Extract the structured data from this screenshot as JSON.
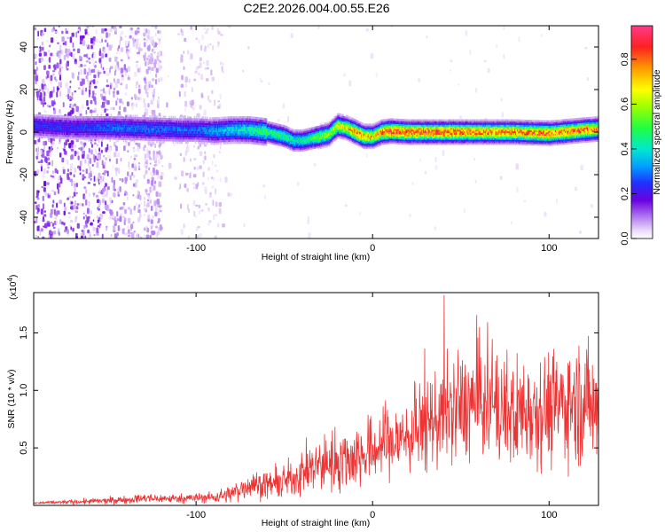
{
  "chart_data": [
    {
      "type": "heatmap",
      "title": "C2E2.2026.004.00.55.E26",
      "xlabel": "Height of straight line (km)",
      "ylabel": "Frequency (Hz)",
      "xlim": [
        -192,
        128
      ],
      "ylim": [
        -50,
        50
      ],
      "xticks": [
        -100,
        0,
        100
      ],
      "yticks": [
        -40,
        -20,
        0,
        20,
        40
      ],
      "colorbar": {
        "label": "Normalized spectral amplitude",
        "range": [
          0,
          0.95
        ],
        "ticks": [
          0.0,
          0.2,
          0.4,
          0.6,
          0.8
        ]
      },
      "ridge": {
        "x": [
          -192,
          -170,
          -150,
          -130,
          -110,
          -100,
          -90,
          -80,
          -70,
          -60,
          -50,
          -45,
          -40,
          -35,
          -30,
          -25,
          -20,
          -15,
          -10,
          -5,
          0,
          5,
          10,
          20,
          40,
          60,
          80,
          100,
          120,
          128
        ],
        "freq": [
          3,
          2,
          2,
          1.5,
          1,
          1,
          0.5,
          1,
          1,
          0,
          -2,
          -4,
          -4,
          -3,
          -2,
          -1,
          3,
          2,
          0,
          -2,
          -2,
          0,
          0.5,
          0,
          0,
          0,
          0,
          -0.5,
          1,
          1.5
        ],
        "amplitude": [
          0.25,
          0.25,
          0.3,
          0.3,
          0.3,
          0.3,
          0.35,
          0.4,
          0.45,
          0.5,
          0.5,
          0.45,
          0.45,
          0.5,
          0.6,
          0.6,
          0.7,
          0.7,
          0.85,
          0.8,
          0.75,
          0.85,
          0.9,
          0.9,
          0.9,
          0.85,
          0.85,
          0.85,
          0.85,
          0.8
        ]
      }
    },
    {
      "type": "line",
      "title": "",
      "xlabel": "Height of straight line (km)",
      "ylabel": "SNR (10 * v/v)",
      "y_scale_label": "(x10",
      "y_scale_exponent": "4",
      "y_scale_suffix": ")",
      "xlim": [
        -192,
        128
      ],
      "ylim": [
        0,
        1.85
      ],
      "xticks": [
        -100,
        0,
        100
      ],
      "yticks": [
        0.5,
        1.0,
        1.5
      ],
      "ytick_labels": [
        "0.5",
        "1.0",
        "1.5"
      ],
      "series": [
        {
          "name": "SNR",
          "color": "#ee3333",
          "envelope_x": [
            -192,
            -170,
            -150,
            -130,
            -110,
            -90,
            -80,
            -70,
            -60,
            -50,
            -40,
            -30,
            -20,
            -10,
            0,
            10,
            20,
            30,
            40,
            50,
            60,
            70,
            80,
            90,
            100,
            110,
            120,
            128
          ],
          "envelope_mean": [
            0.02,
            0.03,
            0.04,
            0.06,
            0.06,
            0.07,
            0.1,
            0.18,
            0.18,
            0.2,
            0.28,
            0.35,
            0.4,
            0.42,
            0.48,
            0.55,
            0.6,
            0.7,
            0.8,
            0.85,
            0.9,
            0.85,
            0.8,
            0.85,
            0.85,
            0.9,
            0.9,
            0.85
          ],
          "envelope_spread": [
            0.01,
            0.02,
            0.03,
            0.04,
            0.04,
            0.05,
            0.08,
            0.12,
            0.12,
            0.15,
            0.2,
            0.25,
            0.28,
            0.3,
            0.3,
            0.32,
            0.35,
            0.4,
            0.45,
            0.5,
            0.5,
            0.5,
            0.5,
            0.5,
            0.5,
            0.5,
            0.55,
            0.5
          ]
        }
      ]
    }
  ]
}
